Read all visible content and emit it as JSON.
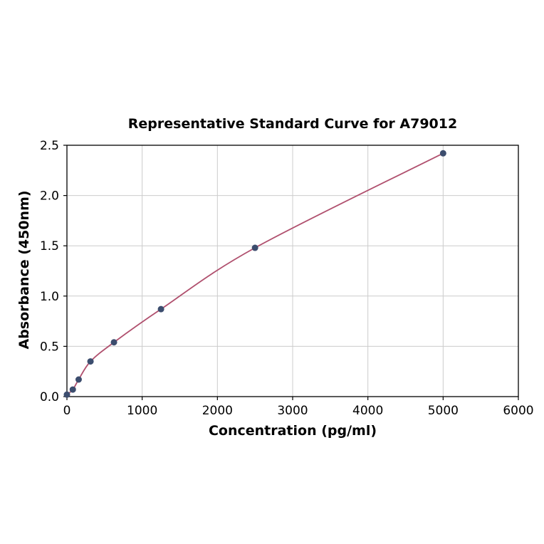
{
  "chart_data": {
    "type": "scatter",
    "title": "Representative Standard Curve for A79012",
    "xlabel": "Concentration (pg/ml)",
    "ylabel": "Absorbance (450nm)",
    "xlim": [
      0,
      6000
    ],
    "ylim": [
      0,
      2.5
    ],
    "x_ticks": [
      0,
      1000,
      2000,
      3000,
      4000,
      5000,
      6000
    ],
    "x_tick_labels": [
      "0",
      "1000",
      "2000",
      "3000",
      "4000",
      "5000",
      "6000"
    ],
    "y_ticks": [
      0,
      0.5,
      1.0,
      1.5,
      2.0,
      2.5
    ],
    "y_tick_labels": [
      "0.0",
      "0.5",
      "1.0",
      "1.5",
      "2.0",
      "2.5"
    ],
    "grid": true,
    "legend": "none",
    "points": {
      "x": [
        0,
        78,
        156,
        313,
        625,
        1250,
        2500,
        5000
      ],
      "y": [
        0.02,
        0.07,
        0.17,
        0.35,
        0.54,
        0.87,
        1.48,
        2.42
      ]
    },
    "colors": {
      "curve": "#b0506e",
      "marker": "#3c4d6e",
      "grid": "#cccccc",
      "axis": "#000000",
      "background": "#ffffff"
    }
  }
}
